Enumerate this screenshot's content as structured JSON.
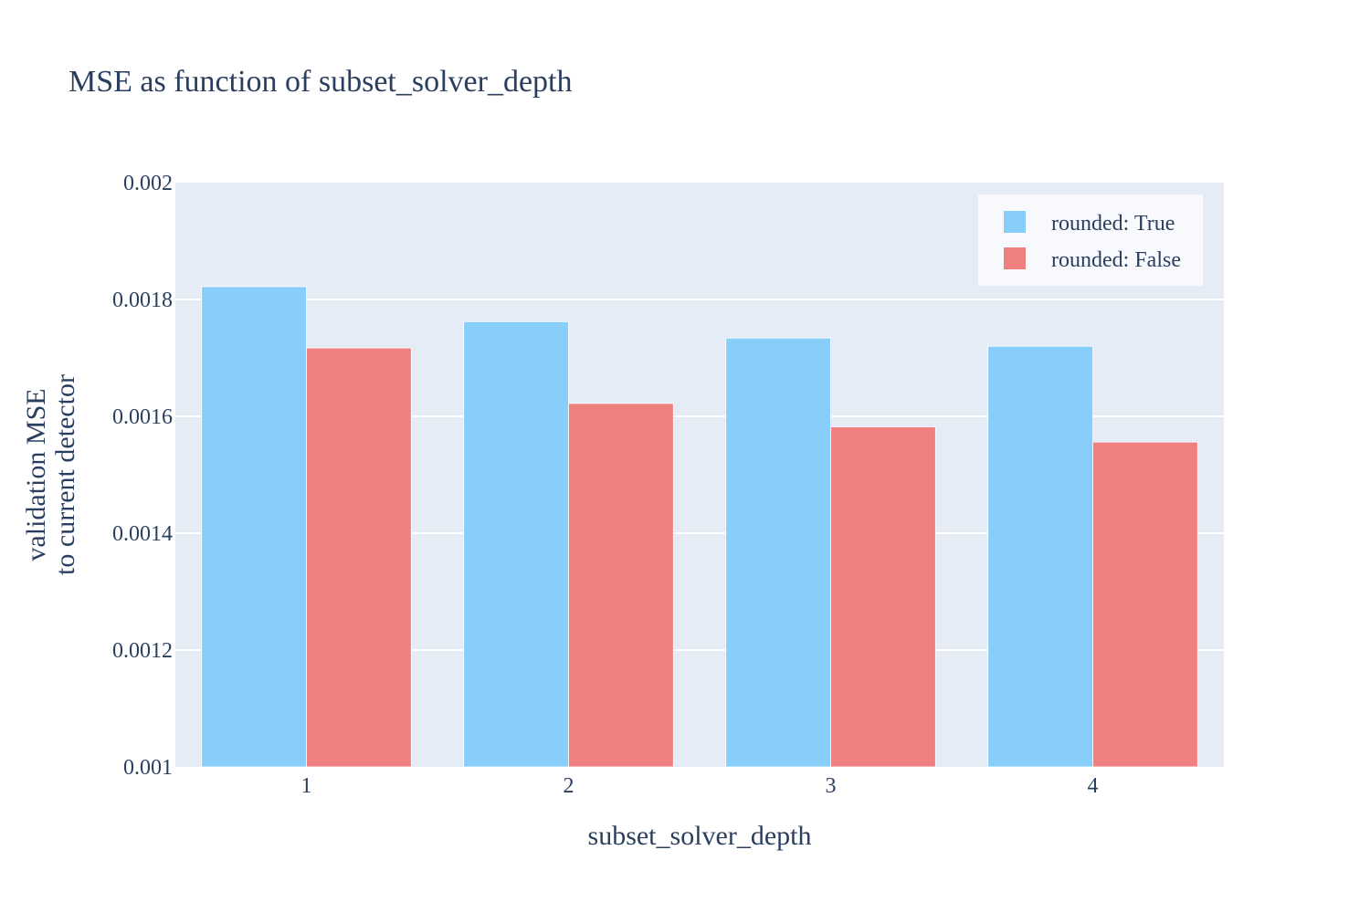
{
  "chart_data": {
    "type": "bar",
    "title": "MSE as function of subset_solver_depth",
    "xlabel": "subset_solver_depth",
    "ylabel_lines": [
      "validation MSE",
      "to current detector"
    ],
    "categories": [
      "1",
      "2",
      "3",
      "4"
    ],
    "series": [
      {
        "name": "rounded: True",
        "color": "#87cefa",
        "values": [
          0.001822,
          0.001762,
          0.001734,
          0.00172
        ]
      },
      {
        "name": "rounded: False",
        "color": "#f08080",
        "values": [
          0.001717,
          0.001622,
          0.001582,
          0.001556
        ]
      }
    ],
    "ylim": [
      0.001,
      0.002
    ],
    "yticks": [
      "0.001",
      "0.0012",
      "0.0014",
      "0.0016",
      "0.0018",
      "0.002"
    ],
    "ytick_values": [
      0.001,
      0.0012,
      0.0014,
      0.0016,
      0.0018,
      0.002
    ],
    "grid": true,
    "legend_position": "top-right",
    "plot_background": "#e5ecf6",
    "text_color": "#2a3f5f"
  }
}
